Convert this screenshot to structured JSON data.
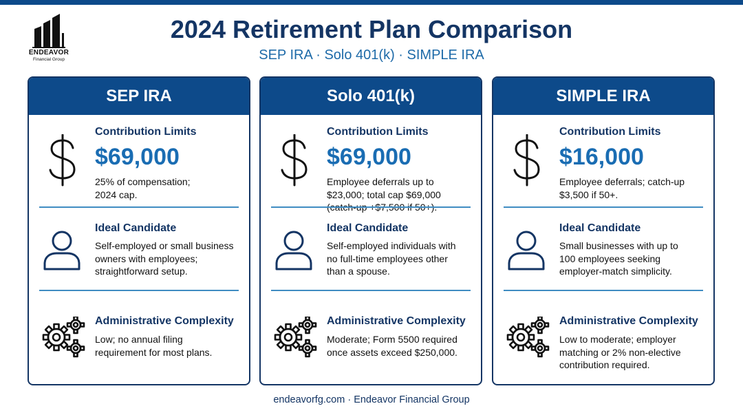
{
  "brand": {
    "name": "ENDEAVOR",
    "tagline": "Financial Group"
  },
  "header": {
    "title": "2024 Retirement Plan Comparison",
    "subtitle": "SEP IRA · Solo 401(k) · SIMPLE IRA"
  },
  "cards": [
    {
      "name": "SEP IRA",
      "contribution": {
        "title": "Contribution Limits",
        "amount": "$69,000",
        "lines": [
          "25% of compensation;",
          "2024 cap."
        ]
      },
      "candidate": {
        "title": "Ideal Candidate",
        "lines": [
          "Self-employed or small business",
          "owners with employees;",
          "straightforward setup."
        ]
      },
      "admin": {
        "title": "Administrative Complexity",
        "lines": [
          "Low; no annual filing",
          "requirement for most plans."
        ]
      }
    },
    {
      "name": "Solo 401(k)",
      "contribution": {
        "title": "Contribution Limits",
        "amount": "$69,000",
        "lines": [
          "Employee deferrals up to",
          "$23,000; total cap $69,000",
          "(catch-up +$7,500 if 50+)."
        ]
      },
      "candidate": {
        "title": "Ideal Candidate",
        "lines": [
          "Self-employed individuals with",
          "no full-time employees other",
          "than a spouse."
        ]
      },
      "admin": {
        "title": "Administrative Complexity",
        "lines": [
          "Moderate; Form 5500 required",
          "once assets exceed $250,000."
        ]
      }
    },
    {
      "name": "SIMPLE IRA",
      "contribution": {
        "title": "Contribution Limits",
        "amount": "$16,000",
        "lines": [
          "Employee deferrals; catch-up",
          "$3,500 if 50+."
        ]
      },
      "candidate": {
        "title": "Ideal Candidate",
        "lines": [
          "Small businesses with up to",
          "100 employees seeking",
          "employer-match simplicity."
        ]
      },
      "admin": {
        "title": "Administrative Complexity",
        "lines": [
          "Low to moderate; employer",
          "matching or 2% non-elective",
          "contribution required."
        ]
      }
    }
  ],
  "footer": {
    "text": "endeavorfg.com · Endeavor Financial Group"
  },
  "colors": {
    "navy": "#143564",
    "header_blue": "#0d4a8a",
    "accent_blue": "#1a6db3",
    "divider": "#3f8cc2"
  }
}
